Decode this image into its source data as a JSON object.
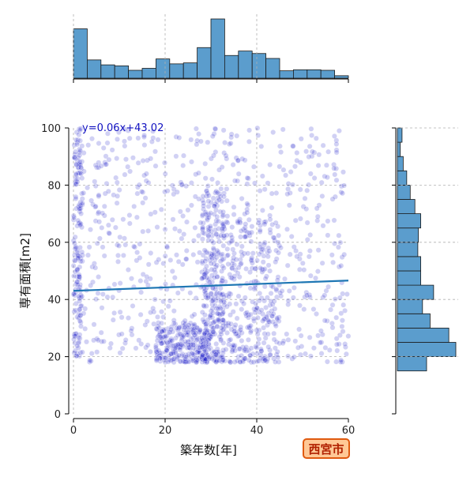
{
  "chart_data": {
    "type": "scatter",
    "xlabel": "築年数[年]",
    "ylabel": "専有面積[m2]",
    "xlim": [
      -1,
      60
    ],
    "ylim": [
      0,
      100
    ],
    "x_ticks": [
      "0",
      "20",
      "40",
      "60"
    ],
    "y_ticks": [
      "0",
      "20",
      "40",
      "60",
      "80",
      "100"
    ],
    "grid": true,
    "regression": {
      "label": "y=0.06x+43.02",
      "slope": 0.06,
      "intercept": 43.02,
      "color": "#1f77b4"
    },
    "point_color": "#0000c0",
    "point_opacity": 0.18,
    "marginal_x_histogram": {
      "bin_edges": [
        0,
        3,
        6,
        9,
        12,
        15,
        18,
        21,
        24,
        27,
        30,
        33,
        36,
        39,
        42,
        45,
        48,
        51,
        54,
        57,
        60
      ],
      "counts": [
        100,
        37,
        27,
        25,
        16,
        20,
        39,
        29,
        31,
        62,
        120,
        46,
        55,
        50,
        40,
        15,
        17,
        17,
        16,
        5
      ],
      "color": "#5b9dcd"
    },
    "marginal_y_histogram": {
      "bin_edges": [
        15,
        20,
        25,
        30,
        35,
        40,
        45,
        50,
        55,
        60,
        65,
        70,
        75,
        80,
        85,
        90,
        95,
        100
      ],
      "counts": [
        50,
        100,
        88,
        56,
        43,
        62,
        40,
        40,
        35,
        36,
        40,
        30,
        22,
        16,
        10,
        5,
        8
      ],
      "color": "#5b9dcd"
    },
    "scatter_points_estimated": {
      "note": "dense scatter of thousands of listings; density clusters",
      "clusters": [
        {
          "x_range": [
            0,
            2
          ],
          "y_range": [
            20,
            100
          ],
          "weight": 140
        },
        {
          "x_range": [
            18,
            30
          ],
          "y_range": [
            18,
            32
          ],
          "weight": 260
        },
        {
          "x_range": [
            28,
            33
          ],
          "y_range": [
            18,
            80
          ],
          "weight": 260
        },
        {
          "x_range": [
            33,
            45
          ],
          "y_range": [
            18,
            70
          ],
          "weight": 240
        },
        {
          "x_range": [
            0,
            60
          ],
          "y_range": [
            18,
            100
          ],
          "weight": 700
        }
      ]
    }
  },
  "badge": {
    "text": "西宮市",
    "border_color": "#e05a10",
    "fill_color": "#ffc896",
    "text_color": "#b02000"
  }
}
